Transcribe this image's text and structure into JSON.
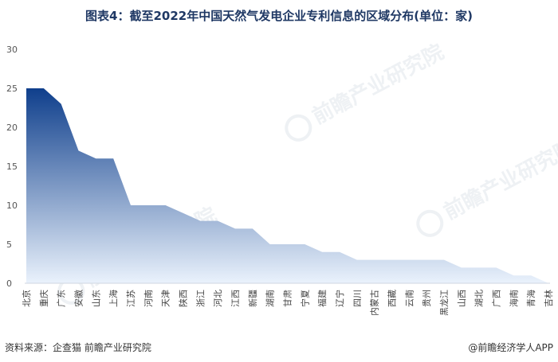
{
  "title": "图表4：截至2022年中国天然气发电企业专利信息的区域分布(单位：家)",
  "source": "资料来源：企查猫 前瞻产业研究院",
  "brand": "@前瞻经济学人APP",
  "watermark": "前瞻产业研究院",
  "colors": {
    "top": "#0f3f8c",
    "bottom": "#eaf2fc",
    "title": "#1f3864"
  },
  "chart_data": {
    "type": "area",
    "title": "图表4：截至2022年中国天然气发电企业专利信息的区域分布(单位：家)",
    "xlabel": "",
    "ylabel": "",
    "ylim": [
      0,
      30
    ],
    "yticks": [
      0,
      5,
      10,
      15,
      20,
      25,
      30
    ],
    "grid": false,
    "categories": [
      "北京",
      "重庆",
      "广东",
      "安徽",
      "山东",
      "上海",
      "江苏",
      "河南",
      "天津",
      "陕西",
      "浙江",
      "河北",
      "江西",
      "新疆",
      "湖南",
      "甘肃",
      "宁夏",
      "福建",
      "辽宁",
      "四川",
      "内蒙古",
      "西藏",
      "云南",
      "贵州",
      "黑龙江",
      "山西",
      "湖北",
      "广西",
      "海南",
      "青海",
      "吉林"
    ],
    "values": [
      25,
      25,
      23,
      17,
      16,
      16,
      10,
      10,
      10,
      9,
      8,
      8,
      7,
      7,
      5,
      5,
      5,
      4,
      4,
      3,
      3,
      3,
      3,
      3,
      3,
      2,
      2,
      2,
      1,
      1,
      0
    ]
  }
}
